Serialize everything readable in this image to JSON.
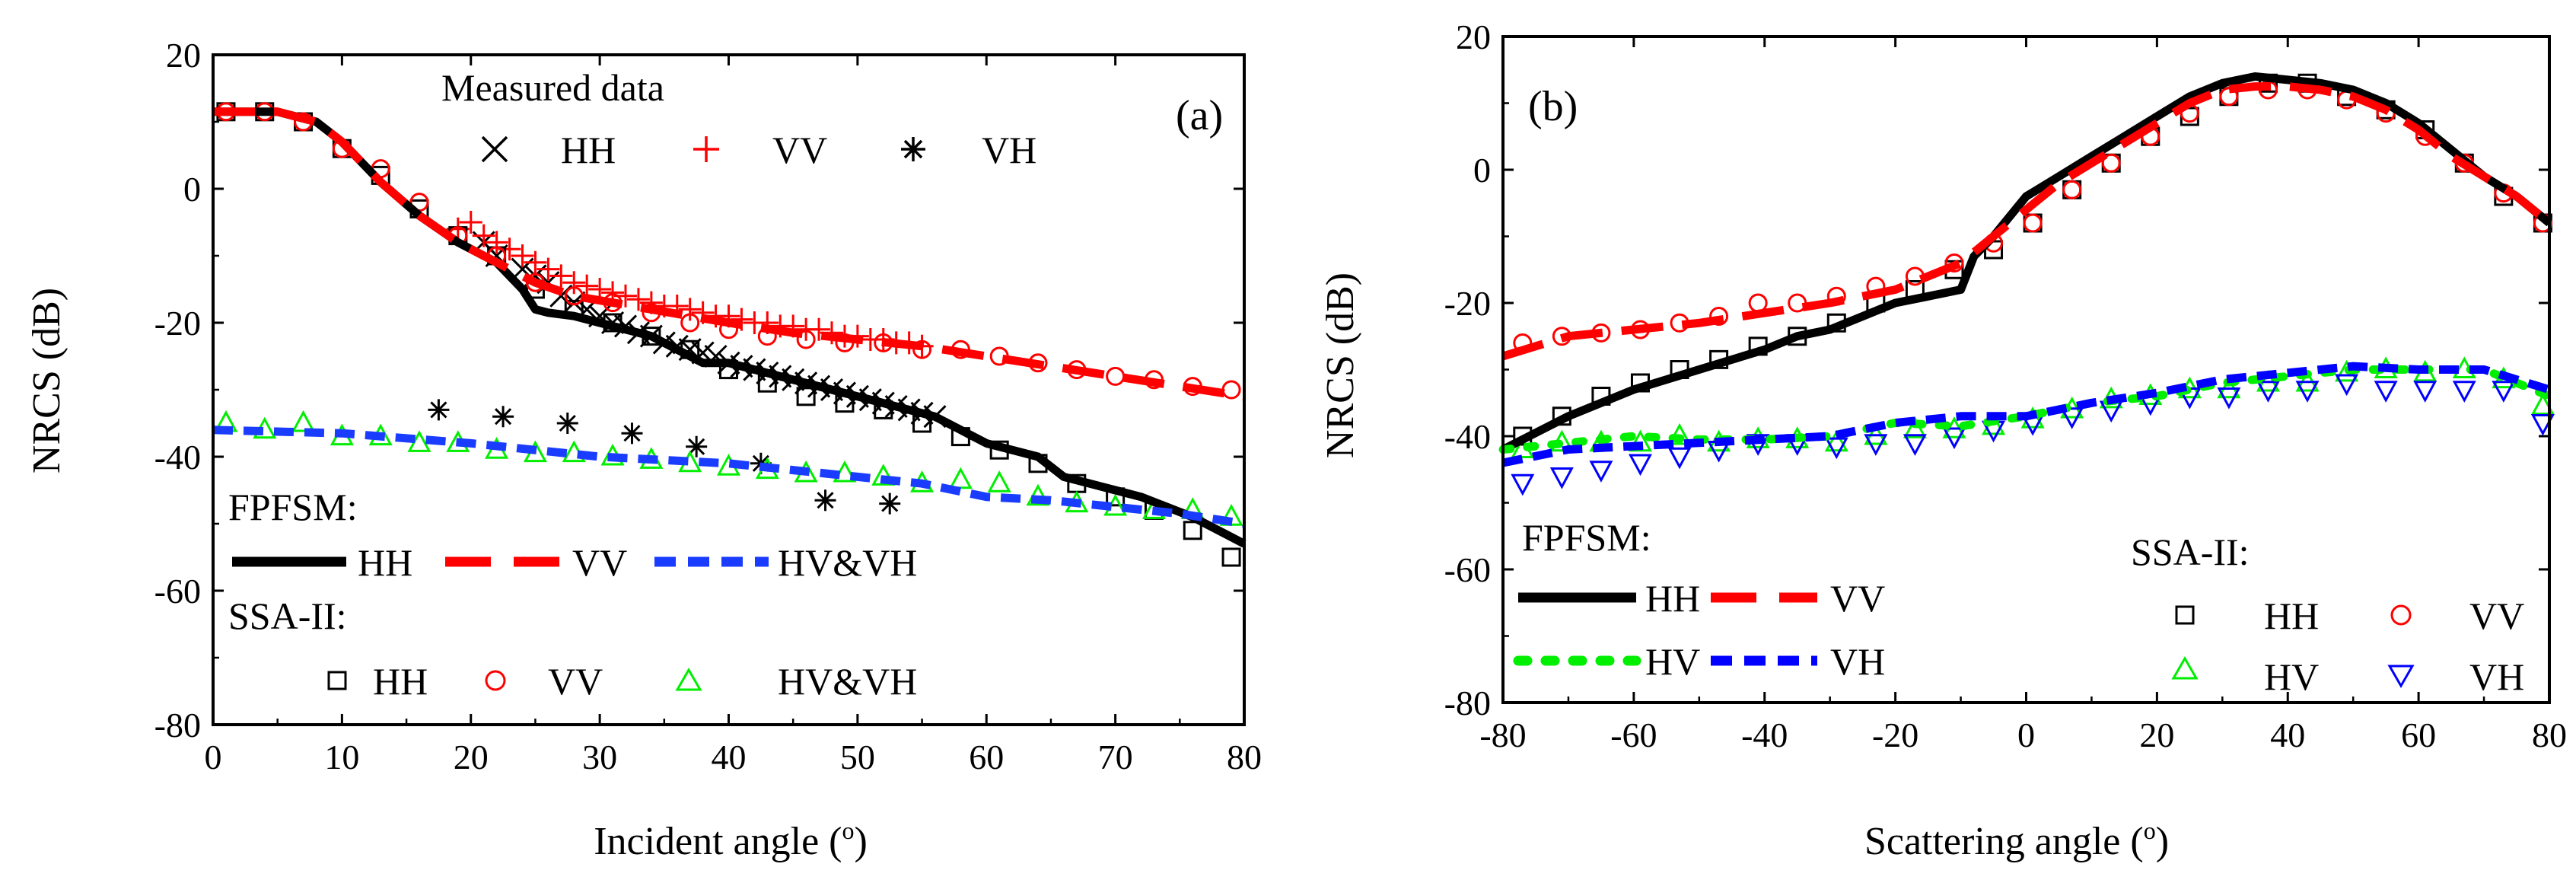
{
  "colors": {
    "HH": "#000000",
    "VV": "#ff0000",
    "HV": "#00ee00",
    "VH": "#0000ff",
    "HVVH": "#1a3cff"
  },
  "chart_data": [
    {
      "type": "line",
      "panel_label": "(a)",
      "xlabel": "Incident angle (",
      "xlabel_sup": "o",
      "xlabel_end": ")",
      "ylabel": "NRCS (dB)",
      "xlim": [
        0,
        80
      ],
      "ylim": [
        -80,
        20
      ],
      "xticks": [
        0,
        10,
        20,
        30,
        40,
        50,
        60,
        70,
        80
      ],
      "yticks": [
        20,
        0,
        -20,
        -40,
        -60,
        -80
      ],
      "legend": {
        "measured_title": "Measured data",
        "measured_items": [
          "HH",
          "VV",
          "VH"
        ],
        "fpfsm_title": "FPFSM:",
        "fpfsm_items": [
          "HH",
          "VV",
          "HV&VH"
        ],
        "ssa_title": "SSA-II:",
        "ssa_items": [
          "HH",
          "VV",
          "HV&VH"
        ]
      },
      "series": [
        {
          "name": "FPFSM HH",
          "style": "solid",
          "color_key": "HH",
          "x": [
            0,
            5,
            8,
            10,
            13,
            16,
            19,
            22,
            24,
            25,
            26,
            28,
            30,
            32,
            34,
            36,
            38,
            40,
            42,
            44,
            46,
            48,
            50,
            52,
            54,
            56,
            58,
            60,
            62,
            64,
            66,
            68,
            70,
            72,
            74,
            76,
            78,
            80
          ],
          "y": [
            11.5,
            11.5,
            10,
            7,
            1,
            -4,
            -8,
            -11,
            -15,
            -18,
            -18.5,
            -19,
            -20,
            -21,
            -22,
            -24,
            -26,
            -26,
            -27,
            -28,
            -29,
            -30,
            -31,
            -32,
            -33,
            -34,
            -36,
            -38,
            -39,
            -40,
            -43,
            -44,
            -45,
            -46,
            -47.5,
            -49,
            -51,
            -53
          ]
        },
        {
          "name": "FPFSM VV",
          "style": "dashed",
          "color_key": "VV",
          "x": [
            0,
            5,
            8,
            10,
            13,
            16,
            19,
            22,
            25,
            28,
            31,
            34,
            37,
            40,
            45,
            50,
            55,
            60,
            65,
            70,
            75,
            80
          ],
          "y": [
            11.5,
            11.5,
            10,
            7,
            1,
            -4,
            -8,
            -11,
            -14,
            -16,
            -17,
            -18,
            -19,
            -20,
            -21.5,
            -22.5,
            -23.5,
            -25,
            -26.5,
            -28,
            -29.5,
            -31
          ]
        },
        {
          "name": "FPFSM HV&VH",
          "style": "dashed",
          "color_key": "HVVH",
          "x": [
            0,
            10,
            20,
            30,
            40,
            45,
            50,
            55,
            60,
            65,
            70,
            75,
            80
          ],
          "y": [
            -36,
            -36.5,
            -38,
            -40,
            -41,
            -42,
            -43,
            -44,
            -46,
            -46.5,
            -47.5,
            -48.5,
            -50
          ]
        },
        {
          "name": "Measured HH",
          "marker": "x",
          "color_key": "HH",
          "x": [
            21,
            22,
            24,
            25,
            26,
            27,
            28,
            29,
            30,
            31,
            32,
            33,
            34,
            35,
            36,
            37,
            38,
            39,
            40,
            41,
            42,
            43,
            44,
            45,
            46,
            47,
            48,
            49,
            50,
            51,
            52,
            53,
            54,
            55,
            56
          ],
          "y": [
            -8,
            -10,
            -12,
            -13,
            -14,
            -16,
            -17,
            -18,
            -19,
            -20,
            -20.5,
            -21.5,
            -22,
            -23,
            -23.5,
            -24,
            -24.5,
            -25,
            -26,
            -26.5,
            -27,
            -27.5,
            -28,
            -28.5,
            -29,
            -29.5,
            -30,
            -30.5,
            -31,
            -31.5,
            -32,
            -32.5,
            -33,
            -33.5,
            -34
          ]
        },
        {
          "name": "Measured VV",
          "marker": "plus",
          "color_key": "VV",
          "x": [
            19,
            20,
            21,
            22,
            23,
            24,
            25,
            26,
            27,
            28,
            29,
            30,
            31,
            32,
            33,
            34,
            35,
            36,
            37,
            38,
            39,
            40,
            41,
            42,
            43,
            44,
            45,
            46,
            47,
            48,
            49,
            50,
            51,
            52,
            53,
            54,
            55
          ],
          "y": [
            -6,
            -5,
            -7,
            -8,
            -9,
            -10,
            -11,
            -12,
            -13,
            -14,
            -14.5,
            -15,
            -15.5,
            -16,
            -16.5,
            -17,
            -17.5,
            -17.5,
            -18,
            -18.5,
            -19,
            -19,
            -19.5,
            -20,
            -20,
            -20.5,
            -20.5,
            -21,
            -21,
            -21.5,
            -22,
            -22,
            -22.5,
            -22.5,
            -23,
            -23,
            -23.5
          ]
        },
        {
          "name": "Measured VH",
          "marker": "asterisk",
          "color_key": "HH",
          "x": [
            17.5,
            22.5,
            27.5,
            32.5,
            37.5,
            42.5,
            47.5,
            52.5
          ],
          "y": [
            -33,
            -34,
            -35,
            -36.5,
            -38.5,
            -41,
            -46.5,
            -47
          ]
        },
        {
          "name": "SSA-II HH",
          "marker": "square",
          "color_key": "HH",
          "x": [
            1,
            4,
            7,
            10,
            13,
            16,
            19,
            22,
            25,
            28,
            31,
            34,
            37,
            40,
            43,
            46,
            49,
            52,
            55,
            58,
            61,
            64,
            67,
            70,
            73,
            76,
            79
          ],
          "y": [
            11.5,
            11.5,
            10,
            6,
            2,
            -3,
            -7,
            -10,
            -15,
            -18,
            -20,
            -22,
            -24,
            -27,
            -29,
            -31,
            -32,
            -33,
            -35,
            -37,
            -39,
            -41,
            -44,
            -46,
            -48,
            -51,
            -55
          ]
        },
        {
          "name": "SSA-II VV",
          "marker": "circle",
          "color_key": "VV",
          "x": [
            1,
            4,
            7,
            10,
            13,
            16,
            19,
            22,
            25,
            28,
            31,
            34,
            37,
            40,
            43,
            46,
            49,
            52,
            55,
            58,
            61,
            64,
            67,
            70,
            73,
            76,
            79
          ],
          "y": [
            11.5,
            11.5,
            10,
            6,
            3,
            -2,
            -7,
            -10,
            -14,
            -16,
            -17,
            -18.5,
            -20,
            -21,
            -22,
            -22.5,
            -23,
            -23,
            -24,
            -24,
            -25,
            -26,
            -27,
            -28,
            -28.5,
            -29.5,
            -30
          ]
        },
        {
          "name": "SSA-II HV&VH",
          "marker": "triangle",
          "color_key": "HV",
          "x": [
            1,
            4,
            7,
            10,
            13,
            16,
            19,
            22,
            25,
            28,
            31,
            34,
            37,
            40,
            43,
            46,
            49,
            52,
            55,
            58,
            61,
            64,
            67,
            70,
            73,
            76,
            79
          ],
          "y": [
            -35,
            -36,
            -35,
            -37,
            -37,
            -38,
            -38,
            -39,
            -39.5,
            -39.5,
            -40,
            -40.5,
            -41,
            -41.5,
            -42,
            -42.5,
            -42.5,
            -43,
            -44,
            -43.5,
            -44,
            -46,
            -47,
            -47.5,
            -48,
            -48,
            -49
          ]
        }
      ]
    },
    {
      "type": "line",
      "panel_label": "(b)",
      "xlabel": "Scattering angle (",
      "xlabel_sup": "o",
      "xlabel_end": ")",
      "ylabel": "NRCS (dB)",
      "xlim": [
        -80,
        80
      ],
      "ylim": [
        -80,
        20
      ],
      "xticks": [
        -80,
        -60,
        -40,
        -20,
        0,
        20,
        40,
        60,
        80
      ],
      "yticks": [
        20,
        0,
        -20,
        -40,
        -60,
        -80
      ],
      "legend": {
        "fpfsm_title": "FPFSM:",
        "fpfsm_items": [
          "HH",
          "VV",
          "HV",
          "VH"
        ],
        "ssa_title": "SSA-II:",
        "ssa_items": [
          "HH",
          "VV",
          "HV",
          "VH"
        ]
      },
      "series": [
        {
          "name": "FPFSM HH",
          "style": "solid",
          "color_key": "HH",
          "x": [
            -80,
            -70,
            -60,
            -50,
            -40,
            -35,
            -30,
            -25,
            -20,
            -15,
            -10,
            -8,
            -5,
            0,
            5,
            10,
            15,
            20,
            25,
            30,
            35,
            40,
            45,
            50,
            55,
            60,
            65,
            70,
            75,
            80
          ],
          "y": [
            -42,
            -37,
            -33,
            -30,
            -27,
            -25,
            -24,
            -22,
            -20,
            -19,
            -18,
            -13,
            -10,
            -4,
            -1,
            2,
            5,
            8,
            11,
            13,
            14,
            13.5,
            13,
            12,
            10,
            7,
            3,
            -1,
            -4,
            -8
          ]
        },
        {
          "name": "FPFSM VV",
          "style": "dashed",
          "color_key": "VV",
          "x": [
            -80,
            -70,
            -60,
            -50,
            -40,
            -30,
            -20,
            -15,
            -10,
            -5,
            0,
            5,
            10,
            15,
            20,
            25,
            30,
            35,
            40,
            45,
            50,
            55,
            60,
            65,
            70,
            75,
            80
          ],
          "y": [
            -28,
            -25,
            -24,
            -23,
            -21.5,
            -20,
            -18,
            -16,
            -14,
            -10,
            -6,
            -2,
            1,
            4,
            7,
            10,
            12,
            12.5,
            12.5,
            12,
            11,
            9,
            6,
            2,
            -1,
            -4,
            -8
          ]
        },
        {
          "name": "FPFSM HV",
          "style": "dotted",
          "color_key": "HV",
          "x": [
            -80,
            -70,
            -60,
            -50,
            -40,
            -30,
            -20,
            -10,
            0,
            10,
            20,
            30,
            40,
            50,
            60,
            70,
            80
          ],
          "y": [
            -42,
            -41,
            -40,
            -40.5,
            -40.5,
            -40,
            -38,
            -38.5,
            -37,
            -35,
            -34,
            -32,
            -31,
            -30,
            -30,
            -30,
            -34
          ]
        },
        {
          "name": "FPFSM VH",
          "style": "dashed",
          "color_key": "VH",
          "x": [
            -80,
            -70,
            -60,
            -50,
            -40,
            -30,
            -20,
            -10,
            0,
            10,
            20,
            30,
            40,
            50,
            60,
            70,
            80
          ],
          "y": [
            -44,
            -42,
            -41.5,
            -41,
            -40.5,
            -40,
            -38,
            -37,
            -37,
            -35,
            -33.5,
            -31.5,
            -30.5,
            -29.5,
            -30,
            -30,
            -33
          ]
        },
        {
          "name": "SSA-II HH",
          "marker": "square",
          "color_key": "HH",
          "x": [
            -77,
            -71,
            -65,
            -59,
            -53,
            -47,
            -41,
            -35,
            -29,
            -23,
            -17,
            -11,
            -5,
            1,
            7,
            13,
            19,
            25,
            31,
            37,
            43,
            49,
            55,
            61,
            67,
            73,
            79
          ],
          "y": [
            -40,
            -37,
            -34,
            -32,
            -30,
            -28.5,
            -26.5,
            -25,
            -23,
            -20,
            -18,
            -15,
            -12,
            -8,
            -3,
            1,
            5,
            8,
            11,
            13,
            13,
            11,
            9,
            6,
            1,
            -4,
            -8
          ]
        },
        {
          "name": "SSA-II VV",
          "marker": "circle",
          "color_key": "VV",
          "x": [
            -77,
            -71,
            -65,
            -59,
            -53,
            -47,
            -41,
            -35,
            -29,
            -23,
            -17,
            -11,
            -5,
            1,
            7,
            13,
            19,
            25,
            31,
            37,
            43,
            49,
            55,
            61,
            67,
            73,
            79
          ],
          "y": [
            -26,
            -25,
            -24.5,
            -24,
            -23,
            -22,
            -20,
            -20,
            -19,
            -17.5,
            -16,
            -14,
            -11,
            -8,
            -3,
            1,
            5,
            8.5,
            11,
            12,
            12,
            10.5,
            8.5,
            5,
            1,
            -3.5,
            -8
          ]
        },
        {
          "name": "SSA-II HV",
          "marker": "triangle",
          "color_key": "HV",
          "x": [
            -77,
            -71,
            -65,
            -59,
            -53,
            -47,
            -41,
            -35,
            -29,
            -23,
            -17,
            -11,
            -5,
            1,
            7,
            13,
            19,
            25,
            31,
            37,
            43,
            49,
            55,
            61,
            67,
            73,
            79
          ],
          "y": [
            -42,
            -41,
            -41,
            -41,
            -40,
            -41,
            -40.5,
            -40.5,
            -41,
            -40,
            -39,
            -39,
            -38.5,
            -37.5,
            -36,
            -34.5,
            -34,
            -33,
            -33,
            -32,
            -32,
            -30.5,
            -30,
            -30.5,
            -30,
            -31.5,
            -35.5
          ]
        },
        {
          "name": "SSA-II VH",
          "marker": "triangle-down",
          "color_key": "VH",
          "x": [
            -77,
            -71,
            -65,
            -59,
            -53,
            -47,
            -41,
            -35,
            -29,
            -23,
            -17,
            -11,
            -5,
            1,
            7,
            13,
            19,
            25,
            31,
            37,
            43,
            49,
            55,
            61,
            67,
            73,
            79
          ],
          "y": [
            -47,
            -46,
            -45,
            -44,
            -43,
            -42,
            -41,
            -41,
            -41.5,
            -41,
            -41,
            -40,
            -39,
            -38,
            -37,
            -36,
            -35,
            -34,
            -34,
            -33,
            -33,
            -32,
            -33,
            -33,
            -33,
            -33,
            -38
          ]
        }
      ]
    }
  ]
}
